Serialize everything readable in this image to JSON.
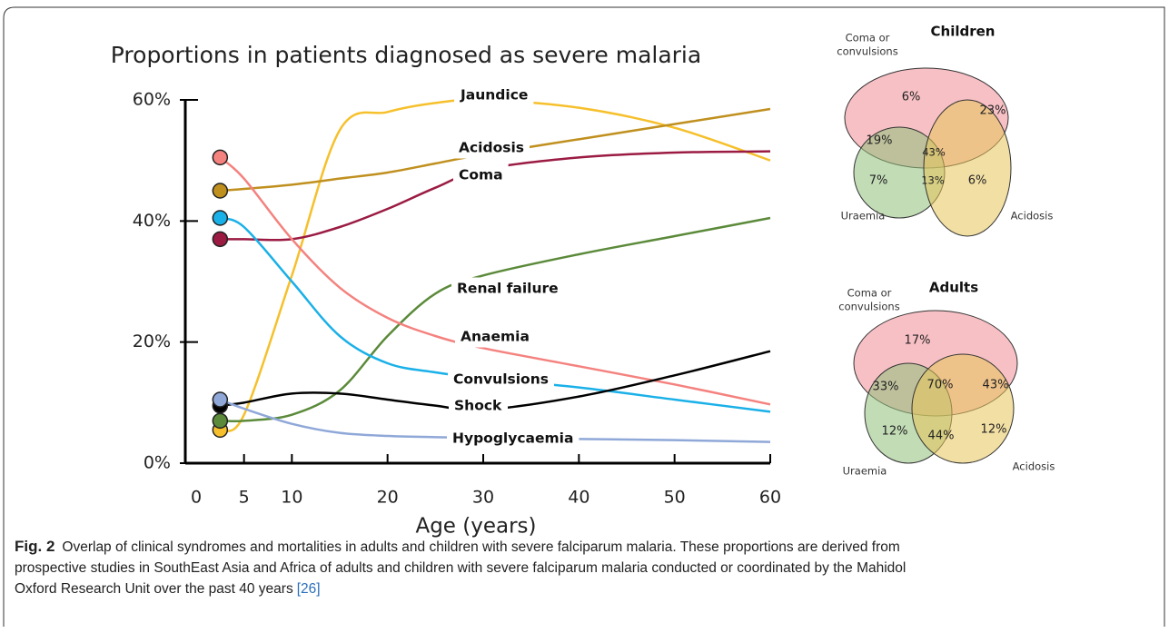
{
  "chart_data": {
    "type": "line",
    "title": "Proportions in patients diagnosed as severe malaria",
    "x_label": "Age (years)",
    "x": [
      2.5,
      5,
      10,
      15,
      20,
      25,
      30,
      40,
      50,
      60
    ],
    "series": [
      {
        "name": "Jaundice",
        "color": "#f6c02c",
        "values": [
          5.5,
          8,
          31,
          55,
          58,
          59.5,
          60,
          58.7,
          55.4,
          50
        ]
      },
      {
        "name": "Acidosis",
        "color": "#c0901f",
        "values": [
          45,
          45.3,
          46,
          47,
          48,
          49.5,
          51,
          53.5,
          56,
          58.5
        ]
      },
      {
        "name": "Coma",
        "color": "#9b1b43",
        "values": [
          37,
          37,
          37,
          39,
          42,
          45.5,
          48.5,
          50.5,
          51.3,
          51.5
        ]
      },
      {
        "name": "Renal failure",
        "color": "#5b8a3a",
        "values": [
          7,
          7,
          8,
          12,
          21,
          28,
          31,
          34.5,
          37.5,
          40.5
        ]
      },
      {
        "name": "Anaemia",
        "color": "#f4827f",
        "values": [
          50.5,
          47,
          37,
          29,
          24,
          21,
          19,
          16,
          13,
          9.7
        ]
      },
      {
        "name": "Convulsions",
        "color": "#1ab0e8",
        "values": [
          40.5,
          39,
          30,
          21,
          16.5,
          15,
          14,
          12.5,
          10.5,
          8.5
        ]
      },
      {
        "name": "Shock",
        "color": "#000000",
        "values": [
          9.5,
          10,
          11.5,
          11.5,
          10.5,
          9.5,
          8.8,
          11,
          14.5,
          18.5
        ]
      },
      {
        "name": "Hypoglycaemia",
        "color": "#8fa8d8",
        "values": [
          10.5,
          9,
          6.5,
          5,
          4.5,
          4.3,
          4.2,
          4,
          3.8,
          3.5
        ]
      }
    ],
    "xlim": [
      0,
      60
    ],
    "xticks": [
      0,
      5,
      10,
      20,
      30,
      40,
      50,
      60
    ],
    "ylim": [
      0,
      60
    ],
    "yticks": [
      {
        "value": 0,
        "label": "0%"
      },
      {
        "value": 20,
        "label": "20%"
      },
      {
        "value": 40,
        "label": "40%"
      },
      {
        "value": 60,
        "label": "60%"
      }
    ]
  },
  "venn": [
    {
      "title": "Children",
      "set_labels": [
        [
          "Coma or",
          "convulsions"
        ],
        [
          "Uraemia"
        ],
        [
          "Acidosis"
        ]
      ],
      "regions": [
        "6%",
        "23%",
        "19%",
        "43%",
        "7%",
        "13%",
        "6%"
      ]
    },
    {
      "title": "Adults",
      "set_labels": [
        [
          "Coma or",
          "convulsions"
        ],
        [
          "Uraemia"
        ],
        [
          "Acidosis"
        ]
      ],
      "regions": [
        "17%",
        "33%",
        "70%",
        "43%",
        "12%",
        "44%",
        "12%"
      ]
    }
  ],
  "caption": {
    "label": "Fig. 2",
    "lines": [
      "Overlap of clinical syndromes and mortalities in adults and children with severe falciparum malaria. These proportions are derived from",
      "prospective studies in SouthEast Asia and Africa of adults and children with severe falciparum malaria conducted or coordinated by the Mahidol",
      "Oxford Research Unit over the past 40 years"
    ],
    "ref": "[26]"
  }
}
